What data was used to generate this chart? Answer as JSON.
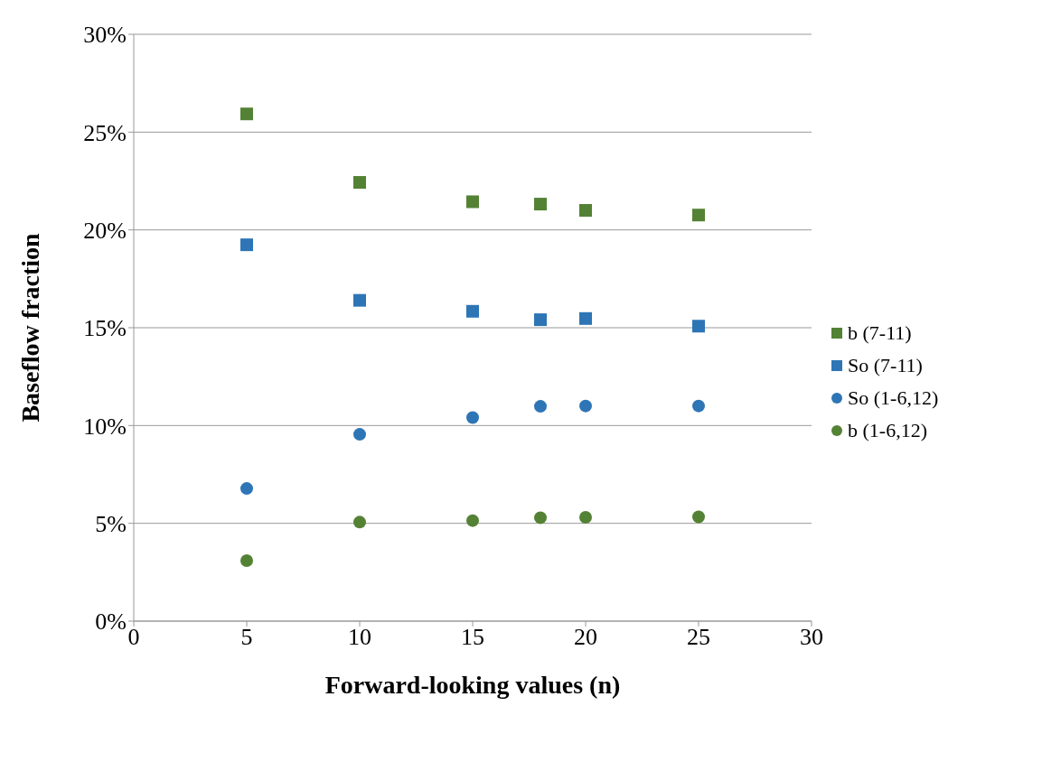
{
  "chart_data": {
    "type": "scatter",
    "xlabel": "Forward-looking values (n)",
    "ylabel": "Baseflow fraction",
    "x": [
      5,
      10,
      15,
      18,
      20,
      25
    ],
    "series": [
      {
        "name": "b (7-11)",
        "color": "#548235",
        "marker": "square",
        "values": [
          25.93,
          22.43,
          21.44,
          21.32,
          21.0,
          20.76
        ]
      },
      {
        "name": "So (7-11)",
        "color": "#2e75b6",
        "marker": "square",
        "values": [
          19.24,
          16.4,
          15.84,
          15.41,
          15.47,
          15.08
        ]
      },
      {
        "name": "So (1-6,12)",
        "color": "#2e75b6",
        "marker": "circle",
        "values": [
          6.78,
          9.55,
          10.41,
          10.98,
          11.0,
          11.0
        ]
      },
      {
        "name": "b (1-6,12)",
        "color": "#548235",
        "marker": "circle",
        "values": [
          3.09,
          5.06,
          5.14,
          5.29,
          5.31,
          5.33
        ]
      }
    ],
    "xlim": [
      0,
      30
    ],
    "xticks": [
      0,
      5,
      10,
      15,
      20,
      25,
      30
    ],
    "ylim": [
      0,
      30
    ],
    "yticks": [
      {
        "value": 0,
        "label": "0%"
      },
      {
        "value": 5,
        "label": "5%"
      },
      {
        "value": 10,
        "label": "10%"
      },
      {
        "value": 15,
        "label": "15%"
      },
      {
        "value": 20,
        "label": "20%"
      },
      {
        "value": 25,
        "label": "25%"
      },
      {
        "value": 30,
        "label": "30%"
      }
    ],
    "grid": "y",
    "legend": "right"
  }
}
